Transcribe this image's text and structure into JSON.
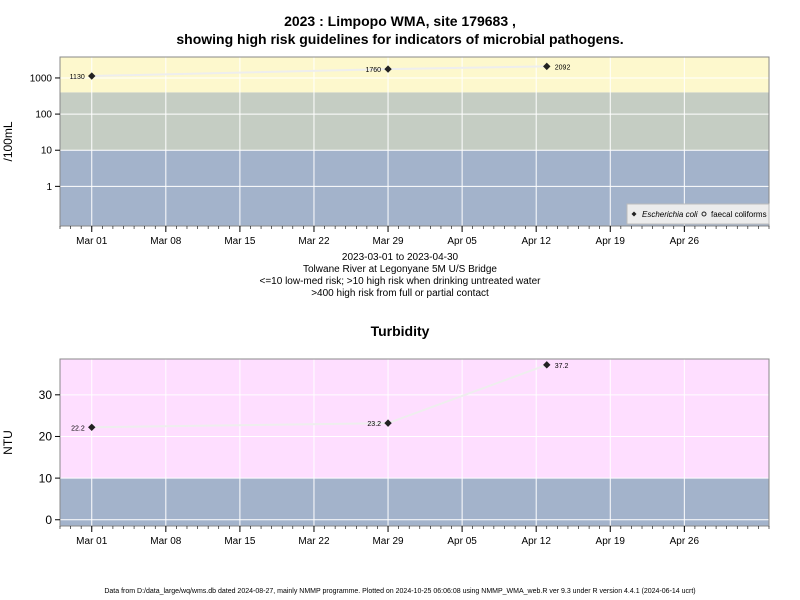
{
  "main_title": {
    "line1": "2023 : Limpopo WMA, site 179683 ,",
    "line2": "showing high risk guidelines for indicators of microbial pathogens."
  },
  "caption": {
    "line1": "2023-03-01 to 2023-04-30",
    "line2": "Tolwane River at Legonyane 5M U/S Bridge",
    "line3": "<=10 low-med risk; >10 high risk when drinking untreated water",
    "line4": ">400 high risk from full or partial contact"
  },
  "footer": "Data from D:/data_large/wq/wms.db dated 2024-08-27, mainly NMMP programme. Plotted on 2024-10-25 06:06:08 using NMMP_WMA_web.R ver 9.3 under R version 4.4.1 (2024-06-14 ucrt)",
  "chart_data": [
    {
      "type": "line",
      "ylabel": "/100mL",
      "yscale": "log",
      "x_tick_labels": [
        "Mar 01",
        "Mar 08",
        "Mar 15",
        "Mar 22",
        "Mar 29",
        "Apr 05",
        "Apr 12",
        "Apr 19",
        "Apr 26"
      ],
      "x_ticks": [
        "2023-03-01",
        "2023-03-08",
        "2023-03-15",
        "2023-03-22",
        "2023-03-29",
        "2023-04-05",
        "2023-04-12",
        "2023-04-19",
        "2023-04-26"
      ],
      "xlim": [
        "2023-02-26",
        "2023-05-04"
      ],
      "y_ticks": [
        1,
        10,
        100,
        1000
      ],
      "y_tick_labels": [
        "1",
        "10",
        "100",
        "1000"
      ],
      "ylim": [
        0.08,
        3800
      ],
      "bands": [
        {
          "from": 0.08,
          "to": 10,
          "color": "#a3b3cb"
        },
        {
          "from": 10,
          "to": 400,
          "color": "#c5cdc3"
        },
        {
          "from": 400,
          "to": 3800,
          "color": "#fdf8cd"
        }
      ],
      "series": [
        {
          "name": "Escherichia coli",
          "marker": "diamond",
          "x": [
            "2023-03-01",
            "2023-03-29",
            "2023-04-13"
          ],
          "y": [
            1130,
            1760,
            2092
          ],
          "labels": [
            "1130",
            "1760",
            "2092"
          ],
          "label_side": [
            "left",
            "left",
            "right"
          ]
        }
      ],
      "legend": {
        "position": "bottom-right",
        "items": [
          {
            "label": "Escherichia coli",
            "marker": "diamond",
            "italic": true
          },
          {
            "label": "faecal coliforms",
            "marker": "circle",
            "italic": false
          }
        ]
      },
      "grid": true
    },
    {
      "type": "line",
      "title": "Turbidity",
      "ylabel": "NTU",
      "x_tick_labels": [
        "Mar 01",
        "Mar 08",
        "Mar 15",
        "Mar 22",
        "Mar 29",
        "Apr 05",
        "Apr 12",
        "Apr 19",
        "Apr 26"
      ],
      "x_ticks": [
        "2023-03-01",
        "2023-03-08",
        "2023-03-15",
        "2023-03-22",
        "2023-03-29",
        "2023-04-05",
        "2023-04-12",
        "2023-04-19",
        "2023-04-26"
      ],
      "xlim": [
        "2023-02-26",
        "2023-05-04"
      ],
      "y_ticks": [
        0,
        10,
        20,
        30
      ],
      "y_tick_labels": [
        "0",
        "10",
        "20",
        "30"
      ],
      "ylim": [
        -1.5,
        38.6
      ],
      "bands": [
        {
          "from": -1.5,
          "to": 10,
          "color": "#a3b3cb"
        },
        {
          "from": 10,
          "to": 38.6,
          "color": "#fedeff"
        }
      ],
      "series": [
        {
          "marker": "diamond",
          "x": [
            "2023-03-01",
            "2023-03-29",
            "2023-04-13"
          ],
          "y": [
            22.2,
            23.2,
            37.2
          ],
          "labels": [
            "22.2",
            "23.2",
            "37.2"
          ],
          "label_side": [
            "left",
            "left",
            "right"
          ]
        }
      ],
      "grid": true
    }
  ]
}
